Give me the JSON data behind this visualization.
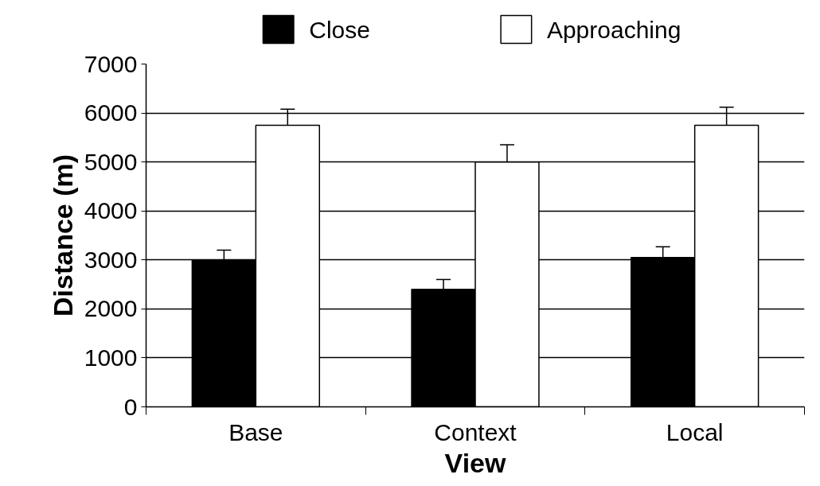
{
  "chart_data": {
    "type": "bar",
    "xlabel": "View",
    "ylabel": "Distance (m)",
    "categories": [
      "Base",
      "Context",
      "Local"
    ],
    "series": [
      {
        "name": "Close",
        "color": "#000000",
        "values": [
          3000,
          2400,
          3050
        ],
        "errors": [
          [
            3000,
            3200
          ],
          [
            2400,
            2600
          ],
          [
            3050,
            3270
          ]
        ]
      },
      {
        "name": "Approaching",
        "color": "#ffffff",
        "values": [
          5750,
          5000,
          5750
        ],
        "errors": [
          [
            5750,
            6080
          ],
          [
            5000,
            5350
          ],
          [
            5750,
            6120
          ]
        ]
      }
    ],
    "ylim": [
      0,
      7000
    ],
    "yticks": [
      0,
      1000,
      2000,
      3000,
      4000,
      5000,
      6000,
      7000
    ],
    "grid": "y",
    "legend": "top"
  }
}
